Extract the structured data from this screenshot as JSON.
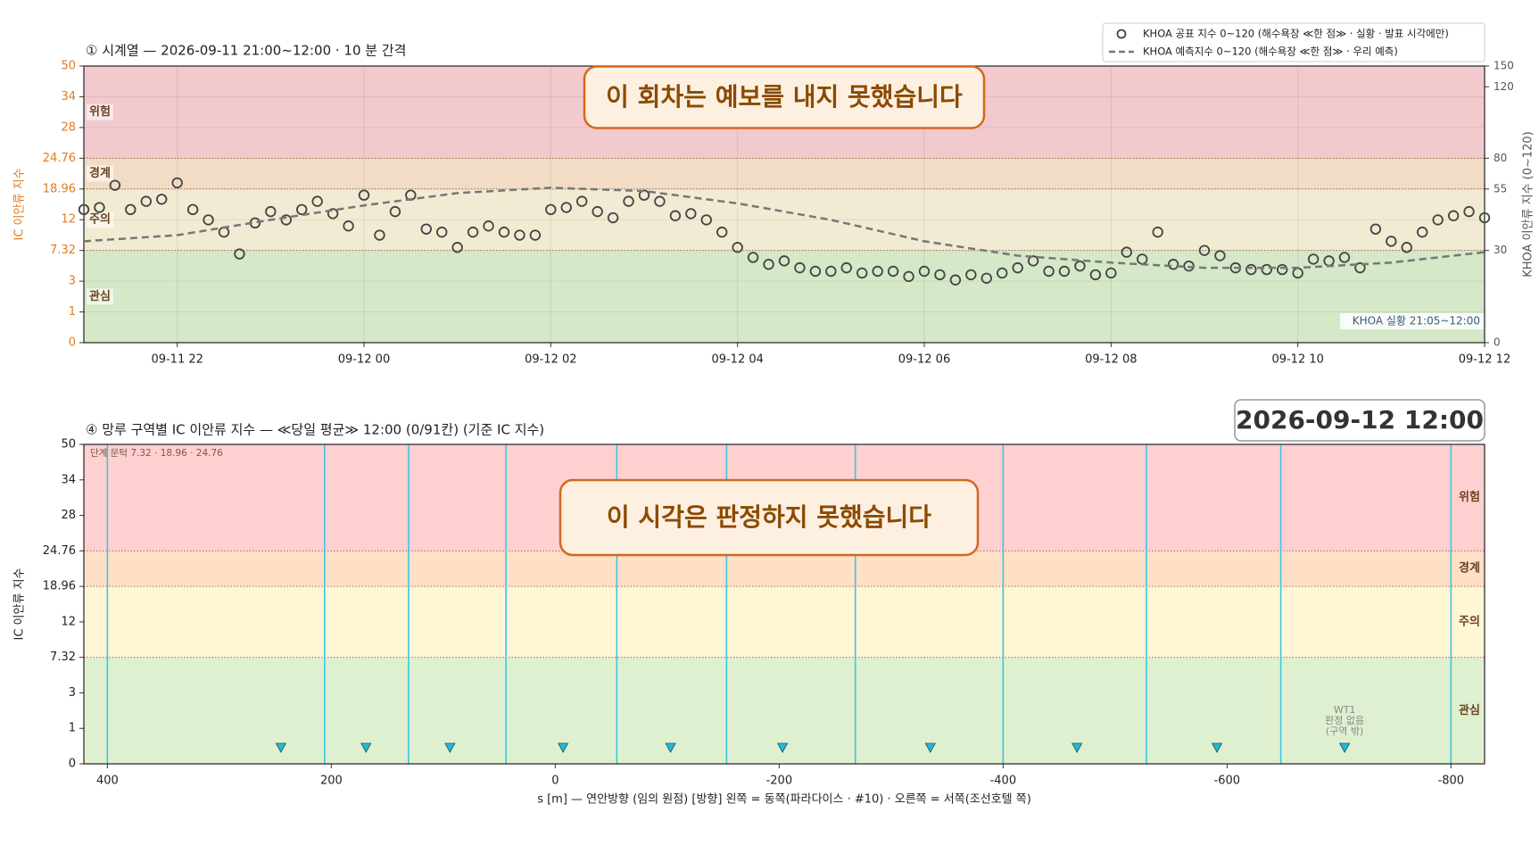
{
  "chart_data": [
    {
      "type": "line",
      "title": "① 시계열 — 2026-09-11 21:00~12:00 · 10 분 간격",
      "ylabel": "IC 이안류 지수",
      "y2label": "KHOA 이안류 지수 (0~120)",
      "annotation": "이 회차는 예보를 내지 못했습니다",
      "range_note": "KHOA 실황 21:05~12:00",
      "xlim": [
        "2026-09-11 21:00",
        "2026-09-12 12:00"
      ],
      "xticks": [
        {
          "value": "2026-09-11 22:00",
          "label": "09-11 22"
        },
        {
          "value": "2026-09-12 00:00",
          "label": "09-12 00"
        },
        {
          "value": "2026-09-12 02:00",
          "label": "09-12 02"
        },
        {
          "value": "2026-09-12 04:00",
          "label": "09-12 04"
        },
        {
          "value": "2026-09-12 06:00",
          "label": "09-12 06"
        },
        {
          "value": "2026-09-12 08:00",
          "label": "09-12 08"
        },
        {
          "value": "2026-09-12 10:00",
          "label": "09-12 10"
        },
        {
          "value": "2026-09-12 12:00",
          "label": "09-12 12"
        }
      ],
      "ylim": [
        0,
        50
      ],
      "yticks": [
        0,
        1,
        3,
        7.32,
        12,
        18.96,
        24.76,
        28,
        34,
        50
      ],
      "y2lim": [
        0,
        150
      ],
      "y2ticks": [
        0,
        30,
        55,
        80,
        120,
        150
      ],
      "band_edges": [
        0,
        7.32,
        18.96,
        24.76,
        50
      ],
      "y2_band_edges": [
        0,
        30,
        55,
        80,
        150
      ],
      "band_names": [
        "관심",
        "주의",
        "경계",
        "위험"
      ],
      "band_colors": [
        "#d5e8c8",
        "#f0ebd2",
        "#f2dcc5",
        "#f2c9cd"
      ],
      "grid": true,
      "legend": "upper right",
      "series": [
        {
          "name": "KHOA 공표 지수 0~120 (해수욕장 ≪한 점≫ · 실황 · 발표 시각에만)",
          "color": "#444444",
          "marker": "circle",
          "axis": "y2",
          "x": [
            "2026-09-11 21:00",
            "2026-09-11 21:10",
            "2026-09-11 21:20",
            "2026-09-11 21:30",
            "2026-09-11 21:40",
            "2026-09-11 21:50",
            "2026-09-11 22:00",
            "2026-09-11 22:10",
            "2026-09-11 22:20",
            "2026-09-11 22:30",
            "2026-09-11 22:40",
            "2026-09-11 22:50",
            "2026-09-11 23:00",
            "2026-09-11 23:10",
            "2026-09-11 23:20",
            "2026-09-11 23:30",
            "2026-09-11 23:40",
            "2026-09-11 23:50",
            "2026-09-12 00:00",
            "2026-09-12 00:10",
            "2026-09-12 00:20",
            "2026-09-12 00:30",
            "2026-09-12 00:40",
            "2026-09-12 00:50",
            "2026-09-12 01:00",
            "2026-09-12 01:10",
            "2026-09-12 01:20",
            "2026-09-12 01:30",
            "2026-09-12 01:40",
            "2026-09-12 01:50",
            "2026-09-12 02:00",
            "2026-09-12 02:10",
            "2026-09-12 02:20",
            "2026-09-12 02:30",
            "2026-09-12 02:40",
            "2026-09-12 02:50",
            "2026-09-12 03:00",
            "2026-09-12 03:10",
            "2026-09-12 03:20",
            "2026-09-12 03:30",
            "2026-09-12 03:40",
            "2026-09-12 03:50",
            "2026-09-12 04:00",
            "2026-09-12 04:10",
            "2026-09-12 04:20",
            "2026-09-12 04:30",
            "2026-09-12 04:40",
            "2026-09-12 04:50",
            "2026-09-12 05:00",
            "2026-09-12 05:10",
            "2026-09-12 05:20",
            "2026-09-12 05:30",
            "2026-09-12 05:40",
            "2026-09-12 05:50",
            "2026-09-12 06:00",
            "2026-09-12 06:10",
            "2026-09-12 06:20",
            "2026-09-12 06:30",
            "2026-09-12 06:40",
            "2026-09-12 06:50",
            "2026-09-12 07:00",
            "2026-09-12 07:10",
            "2026-09-12 07:20",
            "2026-09-12 07:30",
            "2026-09-12 07:40",
            "2026-09-12 07:50",
            "2026-09-12 08:00",
            "2026-09-12 08:10",
            "2026-09-12 08:20",
            "2026-09-12 08:30",
            "2026-09-12 08:40",
            "2026-09-12 08:50",
            "2026-09-12 09:00",
            "2026-09-12 09:10",
            "2026-09-12 09:20",
            "2026-09-12 09:30",
            "2026-09-12 09:40",
            "2026-09-12 09:50",
            "2026-09-12 10:00",
            "2026-09-12 10:10",
            "2026-09-12 10:20",
            "2026-09-12 10:30",
            "2026-09-12 10:40",
            "2026-09-12 10:50",
            "2026-09-12 11:00",
            "2026-09-12 11:10",
            "2026-09-12 11:20",
            "2026-09-12 11:30",
            "2026-09-12 11:40",
            "2026-09-12 11:50",
            "2026-09-12 12:00"
          ],
          "values": [
            45,
            46,
            58,
            45,
            49,
            50,
            60,
            45,
            40,
            36,
            28,
            39,
            44,
            40,
            45,
            49,
            43,
            38,
            52,
            35,
            44,
            52,
            37,
            36,
            31,
            36,
            38,
            36,
            35,
            35,
            45,
            46,
            49,
            44,
            41,
            49,
            52,
            49,
            42,
            43,
            40,
            36,
            31,
            26,
            22,
            24,
            20,
            18,
            18,
            20,
            17,
            18,
            18,
            15,
            18,
            16,
            13,
            16,
            14,
            17,
            20,
            24,
            18,
            18,
            21,
            16,
            17,
            29,
            25,
            36,
            22,
            21,
            30,
            27,
            20,
            19,
            19,
            19,
            17,
            25,
            24,
            26,
            20,
            37,
            33,
            31,
            36,
            40,
            42,
            44,
            41
          ]
        },
        {
          "name": "KHOA 예측지수 0~120 (해수욕장 ≪한 점≫ · 우리 예측)",
          "color": "#777777",
          "dash": true,
          "axis": "y2",
          "x": [
            "2026-09-11 21:00",
            "2026-09-11 22:00",
            "2026-09-11 23:00",
            "2026-09-12 00:00",
            "2026-09-12 01:00",
            "2026-09-12 02:00",
            "2026-09-12 03:00",
            "2026-09-12 04:00",
            "2026-09-12 05:00",
            "2026-09-12 06:00",
            "2026-09-12 07:00",
            "2026-09-12 08:00",
            "2026-09-12 09:00",
            "2026-09-12 10:00",
            "2026-09-12 11:00",
            "2026-09-12 12:00"
          ],
          "values": [
            33,
            35,
            40,
            47,
            53,
            56,
            54,
            48,
            40,
            33,
            27,
            23,
            20,
            20,
            23,
            29
          ]
        }
      ]
    },
    {
      "type": "zones",
      "title": "④ 망루 구역별 IC 이안류 지수 — ≪당일 평균≫ 12:00  (0/91칸)   (기준 IC 지수)",
      "timestamp": "2026-09-12  12:00",
      "threshold_note": "단계 문턱 7.32 · 18.96 · 24.76",
      "annotation": "이 시각은 판정하지 못했습니다",
      "ylabel": "IC 이안류 지수",
      "xlabel": "s [m] — 연안방향 (임의 원점)     [방향] 왼쪽 = 동쪽(파라다이스 · #10) · 오른쪽 = 서쪽(조선호텔 쪽)",
      "xlim": [
        421,
        -830
      ],
      "xticks": [
        400,
        200,
        0,
        -200,
        -400,
        -600,
        -800
      ],
      "ylim": [
        0,
        50
      ],
      "yticks": [
        0,
        1,
        3,
        7.32,
        12,
        18.96,
        24.76,
        28,
        34,
        50
      ],
      "band_edges": [
        0,
        7.32,
        18.96,
        24.76,
        50
      ],
      "band_names": [
        "관심",
        "주의",
        "경계",
        "위험"
      ],
      "band_colors": [
        "#dff0d0",
        "#fff6d6",
        "#ffe0c6",
        "#ffd0d0"
      ],
      "boundaries": [
        400,
        206,
        131,
        44,
        -55,
        -153,
        -268,
        -400,
        -528,
        -648,
        -800
      ],
      "boundary_color": "#3fc6e0",
      "towers": [
        245,
        169,
        94,
        -7,
        -103,
        -203,
        -335,
        -466,
        -591,
        -705
      ],
      "tower_color": "#29b6d6",
      "tower_note": [
        "WT1",
        "판정 없음",
        "(구역 밖)"
      ]
    }
  ]
}
